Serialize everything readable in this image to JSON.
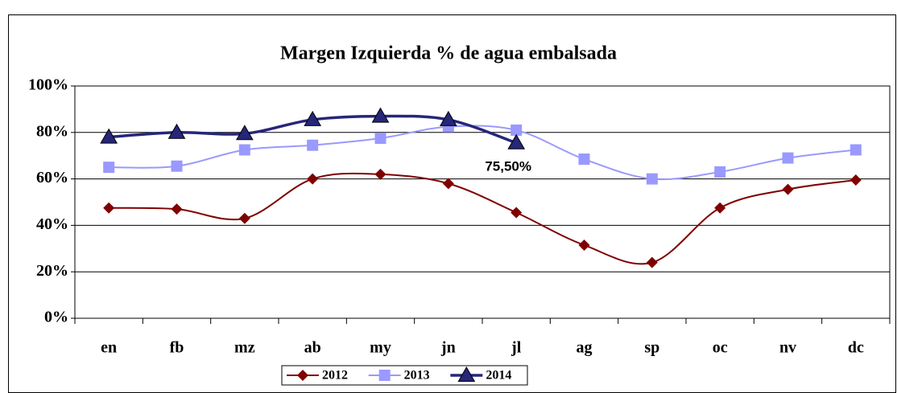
{
  "chart_data": {
    "type": "line",
    "title": "Margen Izquierda % de agua embalsada",
    "categories": [
      "en",
      "fb",
      "mz",
      "ab",
      "my",
      "jn",
      "jl",
      "ag",
      "sp",
      "oc",
      "nv",
      "dc"
    ],
    "series": [
      {
        "name": "2012",
        "color": "#800000",
        "marker": "diamond",
        "values": [
          47.5,
          47,
          43,
          60,
          62,
          58,
          45.5,
          31.5,
          24,
          47.5,
          55.5,
          59.5
        ]
      },
      {
        "name": "2013",
        "color": "#9999ff",
        "marker": "square",
        "values": [
          65,
          65.5,
          72.5,
          74.5,
          77.5,
          82.5,
          81,
          68.5,
          60,
          63,
          69,
          72.5
        ]
      },
      {
        "name": "2014",
        "color": "#26267a",
        "marker": "triangle",
        "values": [
          78,
          80,
          79.5,
          85.5,
          87,
          85.5,
          75.5,
          null,
          null,
          null,
          null,
          null
        ],
        "value_labels": [
          null,
          null,
          null,
          null,
          null,
          null,
          "75,50%",
          null,
          null,
          null,
          null,
          null
        ]
      }
    ],
    "ylim": [
      0,
      100
    ],
    "yticks": [
      {
        "value": 0,
        "label": "0%"
      },
      {
        "value": 20,
        "label": "20%"
      },
      {
        "value": 40,
        "label": "40%"
      },
      {
        "value": 60,
        "label": "60%"
      },
      {
        "value": 80,
        "label": "80%"
      },
      {
        "value": 100,
        "label": "100%"
      }
    ],
    "grid": true,
    "legend": "bottom"
  }
}
